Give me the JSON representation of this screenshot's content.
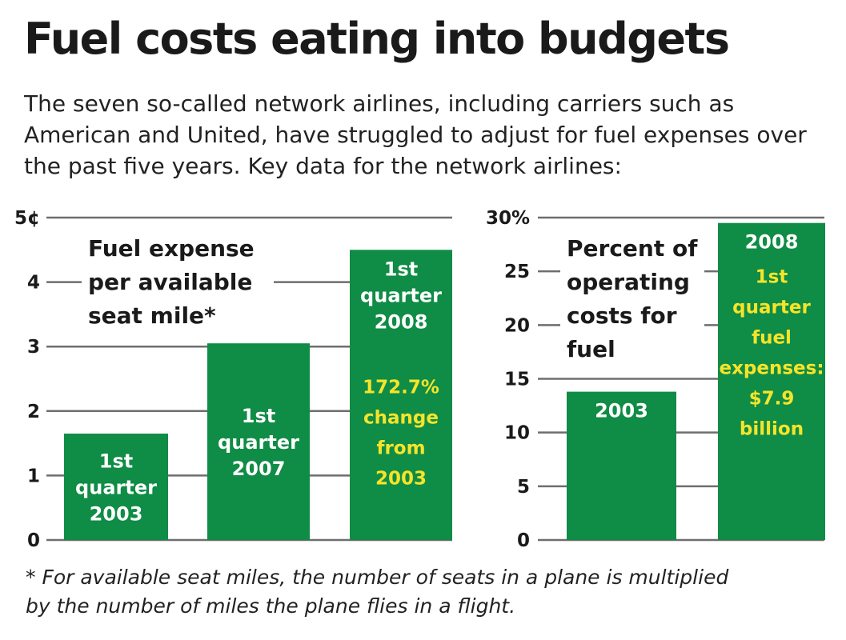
{
  "title": "Fuel costs eating into budgets",
  "subtitle": "The seven so-called network airlines, including carriers such as American and United, have struggled to adjust for fuel expenses over the past five years. Key data for the network airlines:",
  "footnote": [
    "* For available seat miles, the number of seats in a plane is multiplied",
    "by the number of miles the plane flies in a flight."
  ],
  "colors": {
    "bar": "#0f8c45",
    "note_text": "#f6e42a",
    "bar_text": "#ffffff",
    "grid": "#6e6e6e"
  },
  "chart_data": [
    {
      "type": "bar",
      "title_lines": [
        "Fuel expense",
        "per available",
        "seat mile*"
      ],
      "ylim": [
        0,
        5
      ],
      "yticks": [
        {
          "v": 0,
          "label": "0"
        },
        {
          "v": 1,
          "label": "1"
        },
        {
          "v": 2,
          "label": "2"
        },
        {
          "v": 3,
          "label": "3"
        },
        {
          "v": 4,
          "label": "4"
        },
        {
          "v": 5,
          "label": "5¢"
        }
      ],
      "bars": [
        {
          "value": 1.65,
          "label_lines": [
            "1st",
            "quarter",
            "2003"
          ],
          "note_lines": []
        },
        {
          "value": 3.05,
          "label_lines": [
            "1st",
            "quarter",
            "2007"
          ],
          "note_lines": []
        },
        {
          "value": 4.5,
          "label_lines": [
            "1st",
            "quarter",
            "2008"
          ],
          "note_lines": [
            "172.7%",
            "change",
            "from",
            "2003"
          ]
        }
      ]
    },
    {
      "type": "bar",
      "title_lines": [
        "Percent of",
        "operating",
        "costs for",
        "fuel"
      ],
      "ylim": [
        0,
        30
      ],
      "yticks": [
        {
          "v": 0,
          "label": "0"
        },
        {
          "v": 5,
          "label": "5"
        },
        {
          "v": 10,
          "label": "10"
        },
        {
          "v": 15,
          "label": "15"
        },
        {
          "v": 20,
          "label": "20"
        },
        {
          "v": 25,
          "label": "25"
        },
        {
          "v": 30,
          "label": "30%"
        }
      ],
      "bars": [
        {
          "value": 13.8,
          "label_lines": [
            "2003"
          ],
          "note_lines": []
        },
        {
          "value": 29.5,
          "label_lines": [
            "2008"
          ],
          "note_lines": [
            "1st",
            "quarter",
            "fuel",
            "expenses:",
            "$7.9",
            "billion"
          ]
        }
      ]
    }
  ]
}
